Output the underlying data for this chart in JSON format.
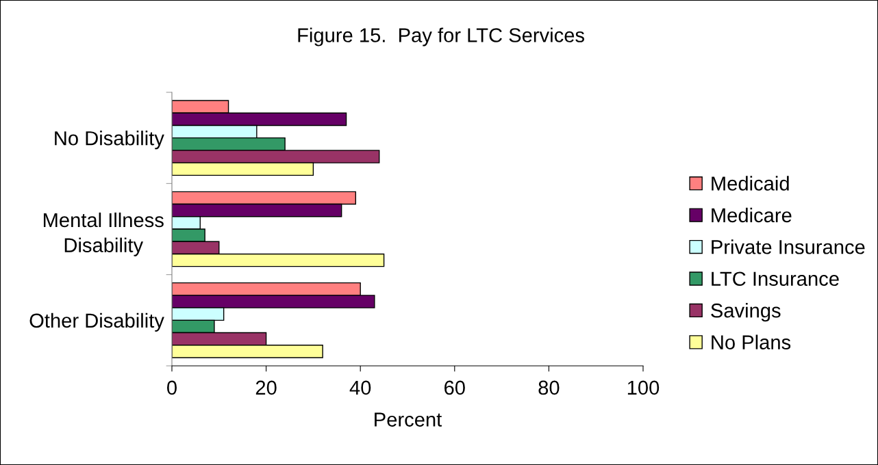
{
  "chart_data": {
    "type": "bar",
    "orientation": "horizontal",
    "title": "Figure 15.  Pay for LTC Services",
    "xlabel": "Percent",
    "categories": [
      "No Disability",
      "Mental Illness\nDisability",
      "Other Disability"
    ],
    "series": [
      {
        "name": "Medicaid",
        "color": "#ff8080",
        "values": [
          12,
          39,
          40
        ]
      },
      {
        "name": "Medicare",
        "color": "#660066",
        "values": [
          37,
          36,
          43
        ]
      },
      {
        "name": "Private Insurance",
        "color": "#ccffff",
        "values": [
          18,
          6,
          11
        ]
      },
      {
        "name": "LTC Insurance",
        "color": "#339966",
        "values": [
          24,
          7,
          9
        ]
      },
      {
        "name": "Savings",
        "color": "#993366",
        "values": [
          44,
          10,
          20
        ]
      },
      {
        "name": "No Plans",
        "color": "#ffff99",
        "values": [
          30,
          45,
          32
        ]
      }
    ],
    "xlim": [
      0,
      100
    ],
    "xticks": [
      0,
      20,
      40,
      60,
      80,
      100
    ],
    "legend": "right",
    "grid": false
  }
}
